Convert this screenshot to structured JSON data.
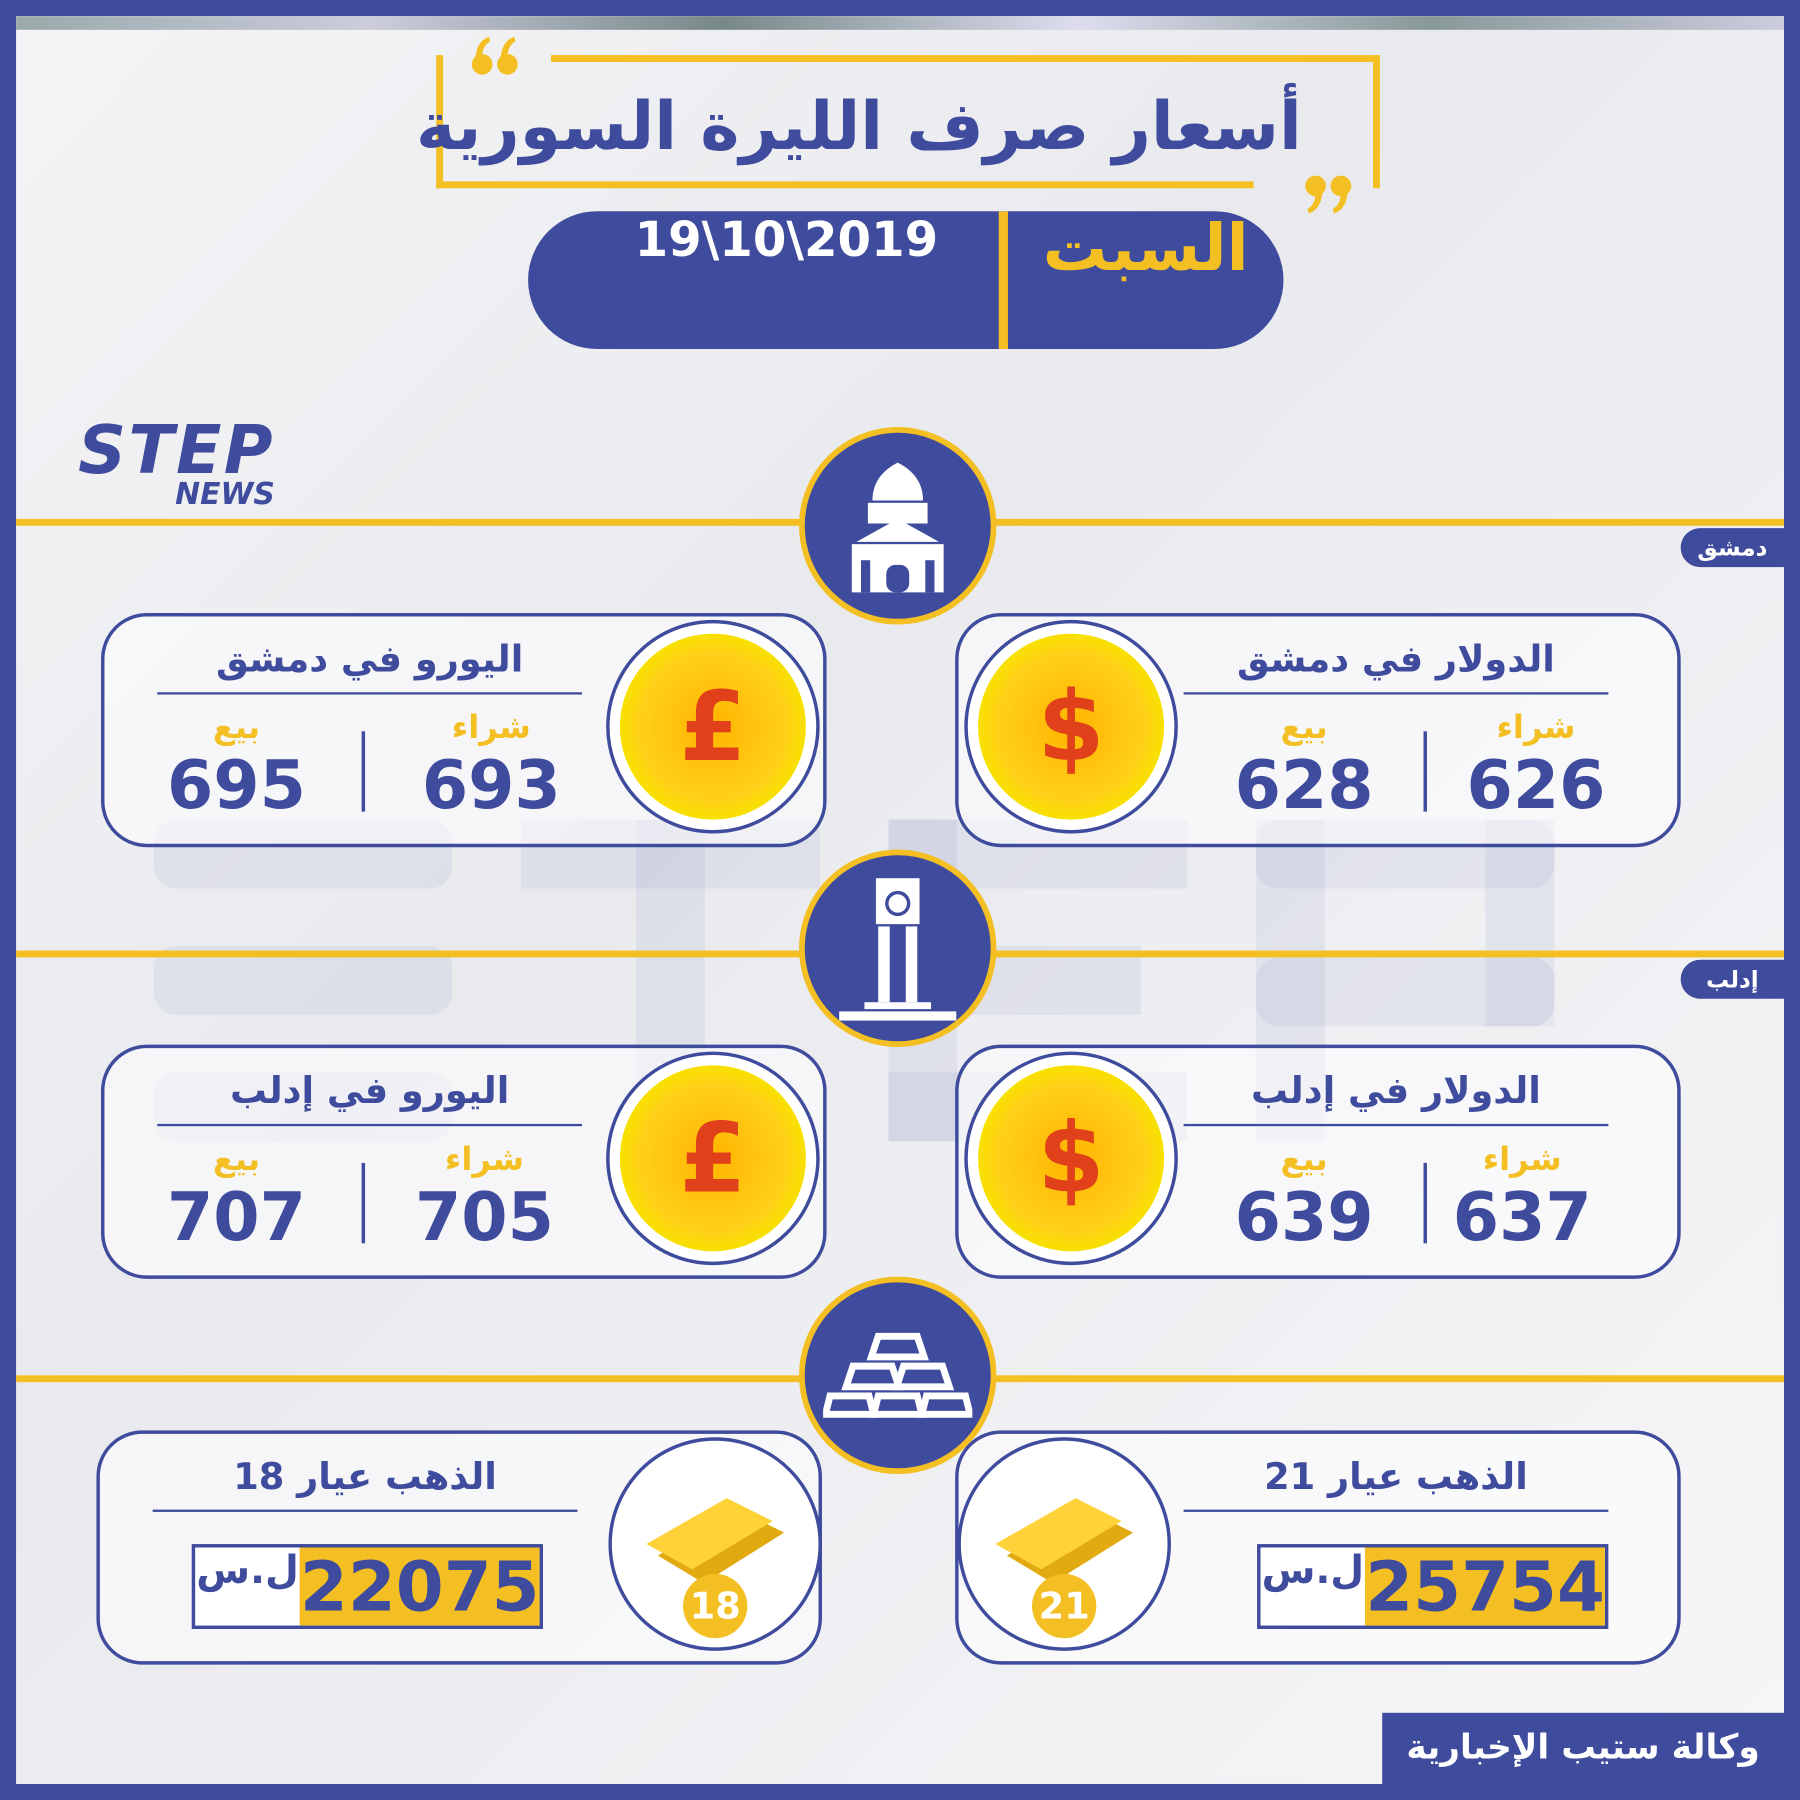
{
  "title": "أسعار صرف الليرة السورية",
  "day": "السبت",
  "date": "19\\10\\2019",
  "logo": {
    "top": "STEP",
    "bottom": "NEWS"
  },
  "colors": {
    "primary": "#3f4b9c",
    "accent": "#f4bf22"
  },
  "labels": {
    "buy": "شراء",
    "sell": "بيع",
    "currency": "ل.س"
  },
  "damascus": {
    "tag": "دمشق",
    "icon": "mosque-icon",
    "dollar": {
      "title": "الدولار في دمشق",
      "buy": "626",
      "sell": "628"
    },
    "euro": {
      "title": "اليورو في دمشق",
      "buy": "693",
      "sell": "695"
    }
  },
  "idlib": {
    "tag": "إدلب",
    "icon": "clock-tower-icon",
    "dollar": {
      "title": "الدولار في إدلب",
      "buy": "637",
      "sell": "639"
    },
    "euro": {
      "title": "اليورو في إدلب",
      "buy": "705",
      "sell": "707"
    }
  },
  "gold": {
    "icon": "gold-bars-icon",
    "k21": {
      "title": "الذهب عيار 21",
      "karat": "21",
      "price": "25754"
    },
    "k18": {
      "title": "الذهب عيار 18",
      "karat": "18",
      "price": "22075"
    }
  },
  "footer": "وكالة ستيب الإخبارية"
}
